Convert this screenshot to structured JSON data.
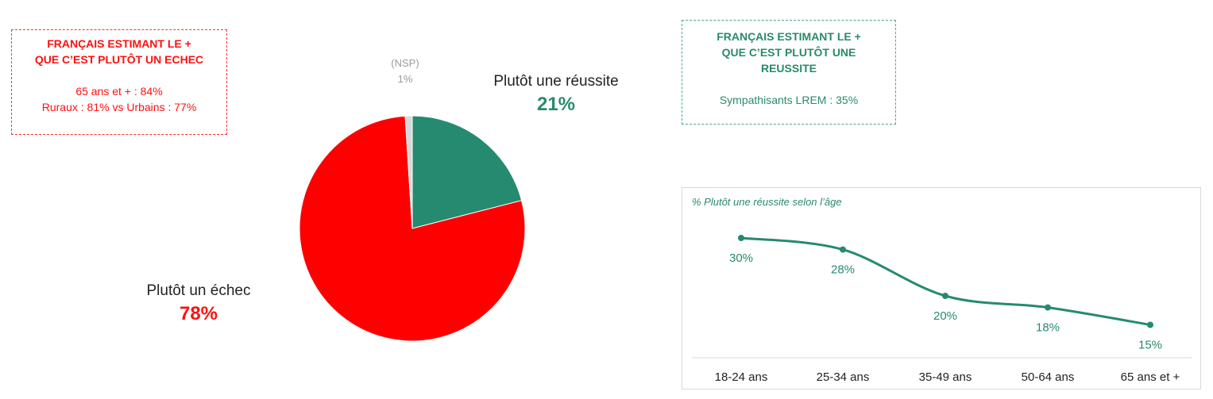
{
  "left_box": {
    "title_line1": "FRANÇAIS ESTIMANT LE +",
    "title_line2": "QUE C’EST PLUTÔT UN ECHEC",
    "stat1": "65 ans et + : 84%",
    "stat2": "Ruraux : 81% vs Urbains : 77%"
  },
  "right_box": {
    "title_line1": "FRANÇAIS ESTIMANT LE +",
    "title_line2": "QUE C’EST PLUTÔT UNE",
    "title_line3": "REUSSITE",
    "stat1": "Sympathisants LREM : 35%"
  },
  "colors": {
    "reussite": "#268a70",
    "echec": "#ff0000",
    "nsp": "#d9d9d9",
    "grid": "#d9d9d9"
  },
  "chart_data": [
    {
      "type": "pie",
      "slices": [
        {
          "label": "Plutôt une réussite",
          "value": 21,
          "display": "21%"
        },
        {
          "label": "Plutôt un échec",
          "value": 78,
          "display": "78%"
        },
        {
          "label": "(NSP)",
          "value": 1,
          "display": "1%"
        }
      ]
    },
    {
      "type": "line",
      "title": "% Plutôt une réussite selon l’âge",
      "categories": [
        "18-24 ans",
        "25-34 ans",
        "35-49 ans",
        "50-64 ans",
        "65 ans et +"
      ],
      "values": [
        30,
        28,
        20,
        18,
        15
      ],
      "labels": [
        "30%",
        "28%",
        "20%",
        "18%",
        "15%"
      ]
    }
  ]
}
